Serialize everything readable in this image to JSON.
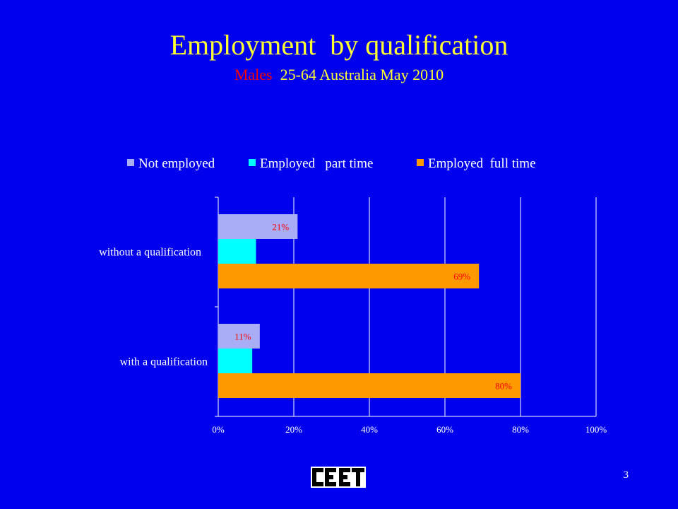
{
  "slide": {
    "title": "Employment  by qualification",
    "subtitle_red": "Males ",
    "subtitle_yellow": " 25-64 Australia May 2010",
    "page_number": "3",
    "logo_text": "CEET",
    "background_color": "#0000ee"
  },
  "chart_data": {
    "type": "bar",
    "orientation": "horizontal",
    "categories": [
      "without a qualification",
      "with a qualification"
    ],
    "series": [
      {
        "name": "Not employed",
        "color": "#a9adf5",
        "values": [
          21,
          11
        ],
        "labels": [
          "21%",
          "11%"
        ]
      },
      {
        "name": "Employed   part time",
        "color": "#00ffff",
        "values": [
          10,
          9
        ],
        "labels": [
          "",
          ""
        ]
      },
      {
        "name": "Employed  full time",
        "color": "#ff9900",
        "values": [
          69,
          80
        ],
        "labels": [
          "69%",
          "80%"
        ]
      }
    ],
    "xlim": [
      0,
      100
    ],
    "x_ticks": [
      "0%",
      "20%",
      "40%",
      "60%",
      "80%",
      "100%"
    ],
    "grid": true,
    "legend_position": "top",
    "data_label_color": "#ff0000"
  }
}
